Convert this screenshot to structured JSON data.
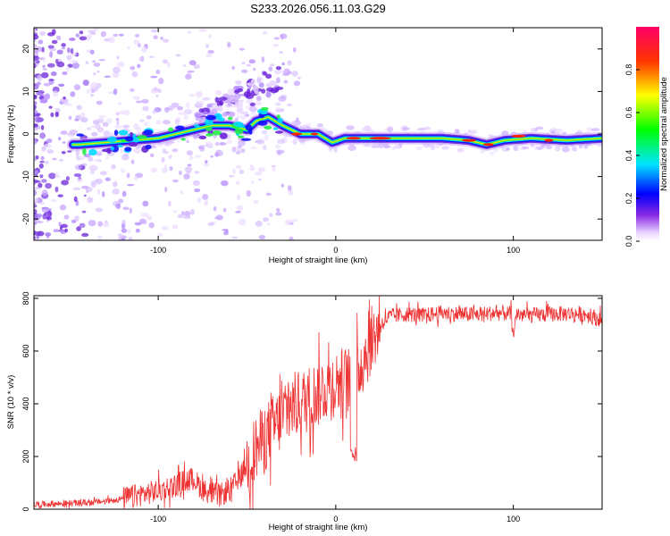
{
  "figure": {
    "title": "S233.2026.056.11.03.G29"
  },
  "chart_data": [
    {
      "type": "heatmap",
      "xlabel": "Height of straight line (km)",
      "ylabel": "Frequency (Hz)",
      "xlim": [
        -170,
        150
      ],
      "ylim": [
        -25,
        25
      ],
      "xticks": [
        -100,
        0,
        100
      ],
      "yticks": [
        -20,
        -10,
        0,
        10,
        20
      ],
      "colorbar": {
        "label": "Normalized spectral amplitude",
        "range": [
          0,
          1
        ],
        "ticks": [
          "0.0",
          "0.2",
          "0.4",
          "0.6",
          "0.8"
        ]
      },
      "ridge_frequency": [
        {
          "x": -145,
          "y": -2.5
        },
        {
          "x": -130,
          "y": -2
        },
        {
          "x": -115,
          "y": -1.5
        },
        {
          "x": -100,
          "y": -1
        },
        {
          "x": -90,
          "y": 0
        },
        {
          "x": -80,
          "y": 1
        },
        {
          "x": -70,
          "y": 2
        },
        {
          "x": -60,
          "y": 2
        },
        {
          "x": -50,
          "y": 1
        },
        {
          "x": -45,
          "y": 3
        },
        {
          "x": -38,
          "y": 4
        },
        {
          "x": -30,
          "y": 2
        },
        {
          "x": -20,
          "y": 0
        },
        {
          "x": -10,
          "y": 0
        },
        {
          "x": -2,
          "y": -2
        },
        {
          "x": 5,
          "y": -1
        },
        {
          "x": 20,
          "y": -1
        },
        {
          "x": 40,
          "y": -1
        },
        {
          "x": 60,
          "y": -1
        },
        {
          "x": 75,
          "y": -1.5
        },
        {
          "x": 85,
          "y": -2.5
        },
        {
          "x": 95,
          "y": -1.5
        },
        {
          "x": 110,
          "y": -1
        },
        {
          "x": 130,
          "y": -1.5
        },
        {
          "x": 150,
          "y": -1
        }
      ]
    },
    {
      "type": "line",
      "xlabel": "Height of straight line (km)",
      "ylabel": "SNR (10 * v/v)",
      "xlim": [
        -170,
        150
      ],
      "ylim": [
        0,
        810
      ],
      "xticks": [
        -100,
        0,
        100
      ],
      "yticks": [
        0,
        200,
        400,
        600,
        800
      ],
      "color": "#ee3333",
      "series": [
        {
          "x": [
            -170,
            -160,
            -150,
            -140,
            -130,
            -120,
            -110,
            -100,
            -90,
            -85,
            -80,
            -75,
            -70,
            -65,
            -60,
            -55,
            -50,
            -45,
            -40,
            -35,
            -30,
            -25,
            -20,
            -15,
            -10,
            -5,
            0,
            5,
            10,
            15,
            20,
            25,
            30,
            40,
            50,
            60,
            70,
            80,
            90,
            100,
            110,
            120,
            130,
            140,
            150
          ],
          "y": [
            18,
            20,
            22,
            25,
            30,
            40,
            55,
            70,
            90,
            110,
            115,
            75,
            60,
            55,
            70,
            110,
            170,
            230,
            270,
            310,
            350,
            390,
            400,
            420,
            440,
            470,
            480,
            490,
            500,
            560,
            640,
            700,
            730,
            740,
            735,
            745,
            740,
            738,
            745,
            740,
            735,
            740,
            742,
            740,
            720
          ]
        }
      ]
    }
  ]
}
